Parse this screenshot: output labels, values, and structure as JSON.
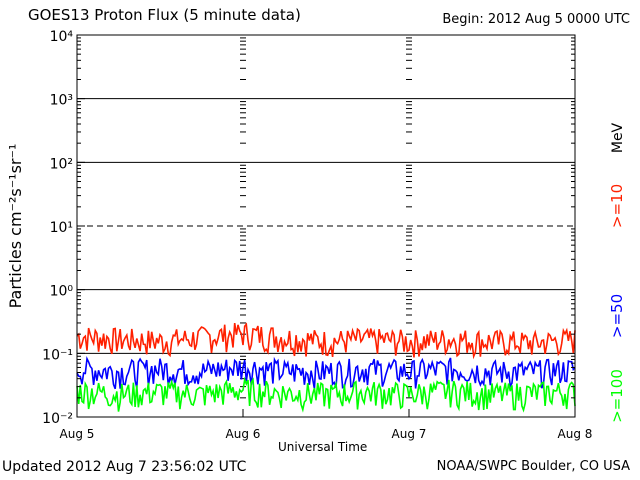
{
  "header": {
    "title": "GOES13 Proton Flux (5 minute data)",
    "begin": "Begin: 2012 Aug 5 0000 UTC"
  },
  "footer": {
    "updated": "Updated 2012 Aug  7 23:56:02 UTC",
    "credit": "NOAA/SWPC Boulder, CO USA"
  },
  "chart_data": {
    "type": "line",
    "title": "GOES13 Proton Flux (5 minute data)",
    "xlabel": "Universal Time",
    "ylabel": "Particles cm⁻²s⁻¹sr⁻¹",
    "y_scale": "log",
    "ylim": [
      0.01,
      10000
    ],
    "y_ticks": [
      {
        "value": 0.01,
        "label": "10⁻²"
      },
      {
        "value": 0.1,
        "label": "10⁻¹"
      },
      {
        "value": 1,
        "label": "10⁰"
      },
      {
        "value": 10,
        "label": "10¹"
      },
      {
        "value": 100,
        "label": "10²"
      },
      {
        "value": 1000,
        "label": "10³"
      },
      {
        "value": 10000,
        "label": "10⁴"
      }
    ],
    "xlim": [
      "2012-08-05",
      "2012-08-08"
    ],
    "x_ticks": [
      "Aug 5",
      "Aug 6",
      "Aug 7",
      "Aug 8"
    ],
    "x": [
      "2012-08-05 00:00",
      "2012-08-05 06:00",
      "2012-08-05 12:00",
      "2012-08-05 18:00",
      "2012-08-06 00:00",
      "2012-08-06 06:00",
      "2012-08-06 12:00",
      "2012-08-06 18:00",
      "2012-08-07 00:00",
      "2012-08-07 06:00",
      "2012-08-07 12:00",
      "2012-08-07 18:00",
      "2012-08-08 00:00"
    ],
    "series": [
      {
        "name": ">=10",
        "unit": "MeV",
        "color": "#ff2000",
        "values": [
          0.18,
          0.16,
          0.15,
          0.17,
          0.2,
          0.17,
          0.15,
          0.16,
          0.15,
          0.16,
          0.15,
          0.14,
          0.16
        ]
      },
      {
        "name": ">=50",
        "unit": "",
        "color": "#0000ff",
        "values": [
          0.055,
          0.05,
          0.055,
          0.05,
          0.06,
          0.05,
          0.05,
          0.055,
          0.05,
          0.055,
          0.05,
          0.05,
          0.055
        ]
      },
      {
        "name": ">=100",
        "unit": "",
        "color": "#00ff00",
        "values": [
          0.025,
          0.022,
          0.024,
          0.022,
          0.026,
          0.023,
          0.022,
          0.024,
          0.022,
          0.025,
          0.022,
          0.023,
          0.024
        ]
      }
    ],
    "thresholds": [
      {
        "value": 10,
        "style": "dashed",
        "color": "#000000"
      }
    ],
    "grid": true
  }
}
